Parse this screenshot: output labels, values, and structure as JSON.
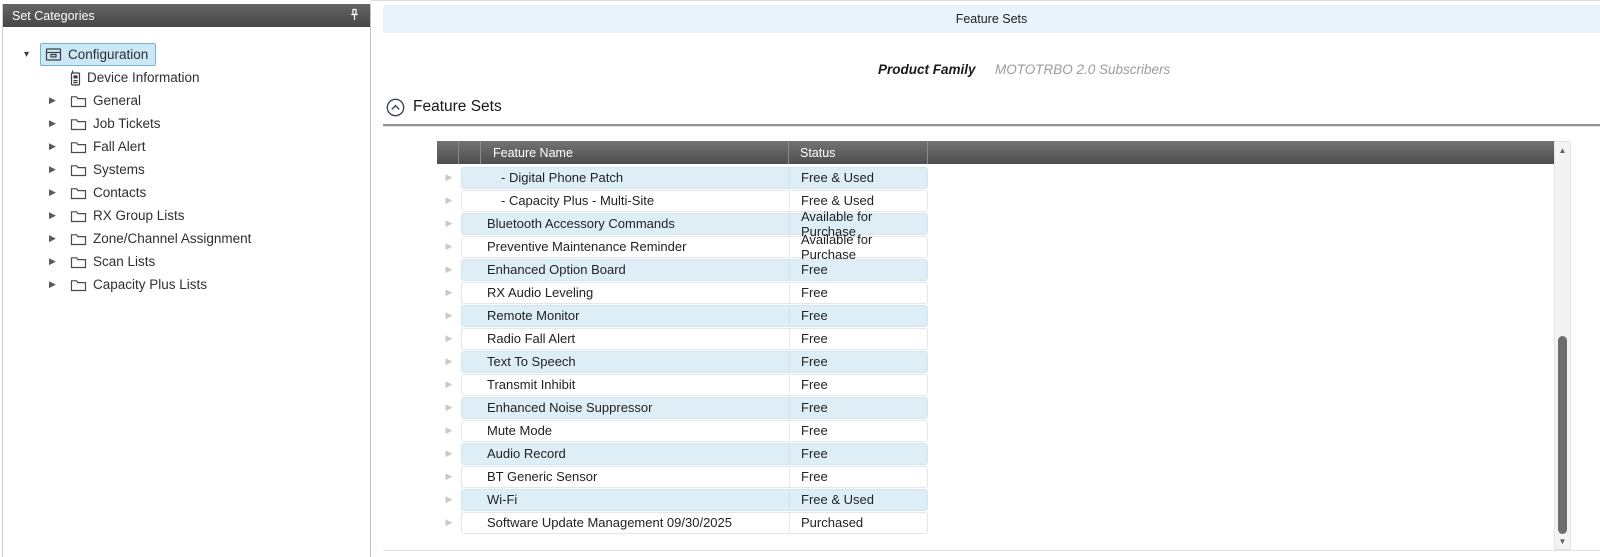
{
  "sidebar": {
    "title": "Set Categories",
    "items": [
      {
        "label": "Configuration",
        "icon": "configuration-icon",
        "state": "expanded",
        "selected": true,
        "level": 0
      },
      {
        "label": "Device Information",
        "icon": "device-icon",
        "state": "leaf",
        "selected": false,
        "level": 1
      },
      {
        "label": "General",
        "icon": "folder-icon",
        "state": "collapsed",
        "selected": false,
        "level": 1
      },
      {
        "label": "Job Tickets",
        "icon": "folder-icon",
        "state": "collapsed",
        "selected": false,
        "level": 1
      },
      {
        "label": "Fall Alert",
        "icon": "folder-icon",
        "state": "collapsed",
        "selected": false,
        "level": 1
      },
      {
        "label": "Systems",
        "icon": "folder-icon",
        "state": "collapsed",
        "selected": false,
        "level": 1
      },
      {
        "label": "Contacts",
        "icon": "folder-icon",
        "state": "collapsed",
        "selected": false,
        "level": 1
      },
      {
        "label": "RX Group Lists",
        "icon": "folder-icon",
        "state": "collapsed",
        "selected": false,
        "level": 1
      },
      {
        "label": "Zone/Channel Assignment",
        "icon": "folder-icon",
        "state": "collapsed",
        "selected": false,
        "level": 1
      },
      {
        "label": "Scan Lists",
        "icon": "folder-icon",
        "state": "collapsed",
        "selected": false,
        "level": 1
      },
      {
        "label": "Capacity Plus Lists",
        "icon": "folder-icon",
        "state": "collapsed",
        "selected": false,
        "level": 1
      }
    ]
  },
  "main": {
    "panel_title": "Feature Sets",
    "product_family": {
      "label": "Product Family",
      "value": "MOTOTRBO 2.0 Subscribers"
    },
    "section": {
      "title": "Feature Sets"
    },
    "table": {
      "columns": [
        {
          "label": "Feature Name"
        },
        {
          "label": "Status"
        }
      ],
      "rows": [
        {
          "name": "- Digital Phone Patch",
          "status": "Free & Used",
          "sub": true
        },
        {
          "name": "- Capacity Plus - Multi-Site",
          "status": "Free & Used",
          "sub": true
        },
        {
          "name": "Bluetooth Accessory Commands",
          "status": "Available for Purchase",
          "sub": false
        },
        {
          "name": "Preventive Maintenance Reminder",
          "status": "Available for Purchase",
          "sub": false
        },
        {
          "name": "Enhanced Option Board",
          "status": "Free",
          "sub": false
        },
        {
          "name": "RX Audio Leveling",
          "status": "Free",
          "sub": false
        },
        {
          "name": "Remote Monitor",
          "status": "Free",
          "sub": false
        },
        {
          "name": "Radio Fall Alert",
          "status": "Free",
          "sub": false
        },
        {
          "name": "Text To Speech",
          "status": "Free",
          "sub": false
        },
        {
          "name": "Transmit Inhibit",
          "status": "Free",
          "sub": false
        },
        {
          "name": "Enhanced Noise Suppressor",
          "status": "Free",
          "sub": false
        },
        {
          "name": "Mute Mode",
          "status": "Free",
          "sub": false
        },
        {
          "name": "Audio Record",
          "status": "Free",
          "sub": false
        },
        {
          "name": "BT Generic Sensor",
          "status": "Free",
          "sub": false
        },
        {
          "name": "Wi-Fi",
          "status": "Free & Used",
          "sub": false
        },
        {
          "name": "Software Update Management 09/30/2025",
          "status": "Purchased",
          "sub": false
        }
      ]
    }
  },
  "colors": {
    "selection_blue": "#cbe8f6",
    "selection_border": "#74b4d6",
    "row_stripe_blue": "#ddeef7",
    "panel_band_blue": "#e9f3fb",
    "header_gray": "#5a5a5a",
    "titlebar_gray": "#555555",
    "value_gray": "#9b9b9b"
  }
}
